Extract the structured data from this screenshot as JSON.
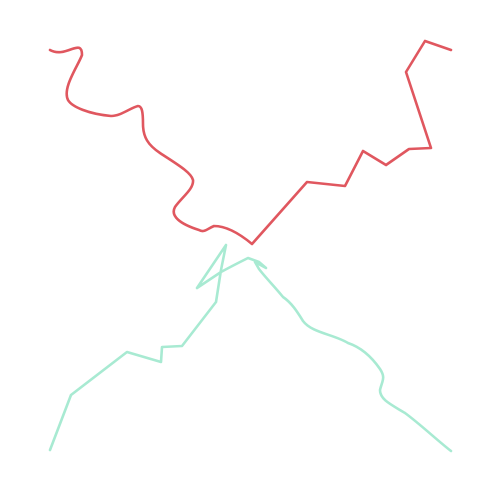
{
  "paths": [
    {
      "id": "red-path",
      "color": "#e0575f"
    },
    {
      "id": "green-path",
      "color": "#a8ead2"
    }
  ]
}
